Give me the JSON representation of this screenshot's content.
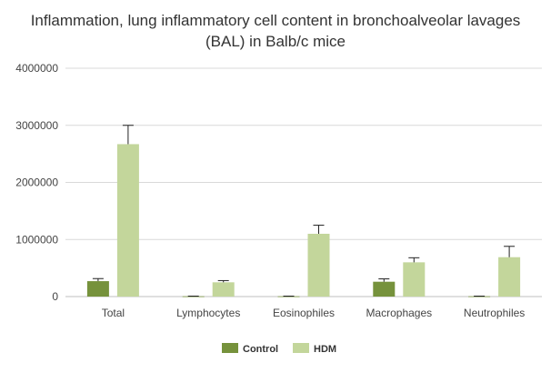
{
  "chart_data": {
    "type": "bar",
    "title_lines": [
      "Inflammation, lung inflammatory cell content in bronchoalveolar lavages",
      "(BAL) in Balb/c mice"
    ],
    "xlabel": "",
    "ylabel": "",
    "categories": [
      "Total",
      "Lymphocytes",
      "Eosinophiles",
      "Macrophages",
      "Neutrophiles"
    ],
    "ylim": [
      0,
      4000000
    ],
    "yticks": [
      0,
      1000000,
      2000000,
      3000000,
      4000000
    ],
    "ytick_labels": [
      "0",
      "1000000",
      "2000000",
      "3000000",
      "4000000"
    ],
    "grid": true,
    "legend_position": "bottom",
    "series": [
      {
        "name": "Control",
        "color": "#76923c",
        "values": [
          270000,
          5000,
          5000,
          260000,
          5000
        ],
        "errors": [
          45000,
          3000,
          3000,
          50000,
          3000
        ]
      },
      {
        "name": "HDM",
        "color": "#c3d69b",
        "values": [
          2670000,
          250000,
          1100000,
          600000,
          690000
        ],
        "errors": [
          330000,
          30000,
          150000,
          80000,
          190000
        ]
      }
    ]
  }
}
